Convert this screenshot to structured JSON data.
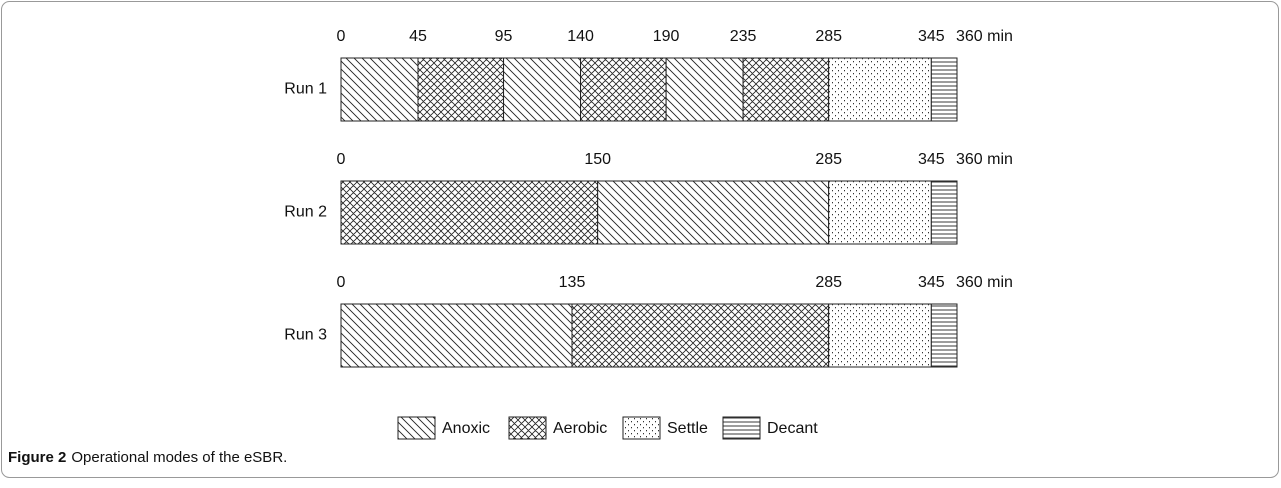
{
  "chart_data": {
    "type": "timeline",
    "xlim": [
      0,
      360
    ],
    "runs": [
      {
        "label": "Run 1",
        "ticks": [
          0,
          45,
          95,
          140,
          190,
          235,
          285,
          345,
          {
            "value": 360,
            "label": "360 min"
          }
        ],
        "phases": [
          "Anoxic",
          "Aerobic",
          "Anoxic",
          "Aerobic",
          "Anoxic",
          "Aerobic",
          "Settle",
          "Decant"
        ]
      },
      {
        "label": "Run 2",
        "ticks": [
          0,
          150,
          285,
          345,
          {
            "value": 360,
            "label": "360 min"
          }
        ],
        "phases": [
          "Aerobic",
          "Anoxic",
          "Settle",
          "Decant"
        ]
      },
      {
        "label": "Run 3",
        "ticks": [
          0,
          135,
          285,
          345,
          {
            "value": 360,
            "label": "360 min"
          }
        ],
        "phases": [
          "Anoxic",
          "Aerobic",
          "Settle",
          "Decant"
        ]
      }
    ],
    "legend": [
      {
        "name": "Anoxic",
        "hatch": "diagonal"
      },
      {
        "name": "Aerobic",
        "hatch": "cross"
      },
      {
        "name": "Settle",
        "hatch": "dots"
      },
      {
        "name": "Decant",
        "hatch": "horizontal"
      }
    ],
    "caption": {
      "label": "Figure 2",
      "text": "Operational modes of the eSBR."
    }
  }
}
